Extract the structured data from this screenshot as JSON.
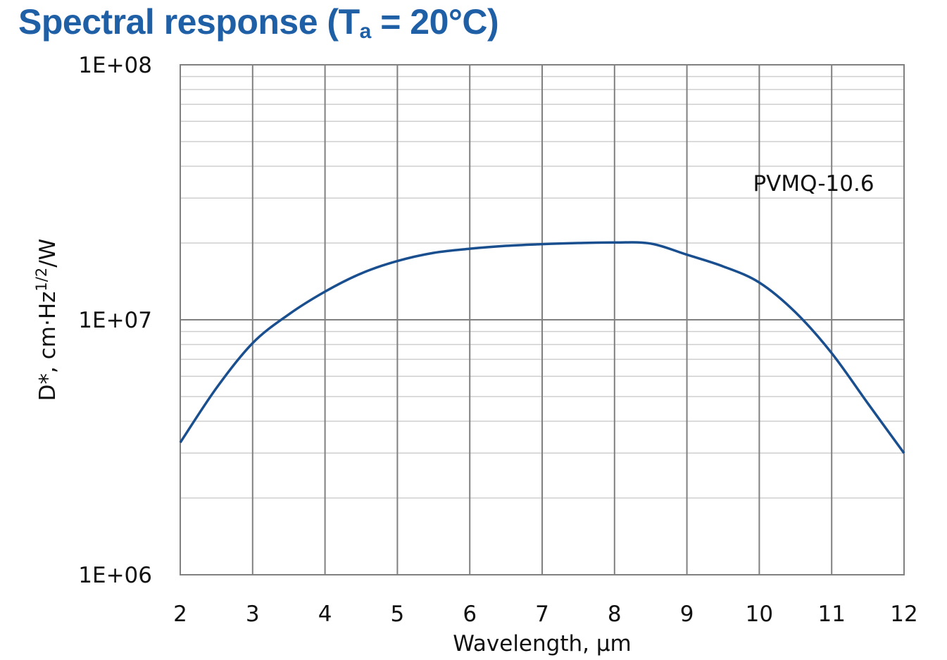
{
  "title": {
    "main": "Spectral response (T",
    "sub": "a",
    "rest": " = 20°C)"
  },
  "chart_data": {
    "type": "line",
    "title": "Spectral response (Ta = 20°C)",
    "xlabel": "Wavelength, µm",
    "ylabel": "D*, cm·Hz1/2/W",
    "ylabel_parts": {
      "pre": "D*, cm·Hz",
      "sup": "1/2",
      "post": "/W"
    },
    "xlim": [
      2,
      12
    ],
    "ylim": [
      1000000,
      100000000
    ],
    "yscale": "log",
    "x_ticks": [
      "2",
      "3",
      "4",
      "5",
      "6",
      "7",
      "8",
      "9",
      "10",
      "11",
      "12"
    ],
    "y_ticks": [
      {
        "value": 1000000,
        "label": "1E+06"
      },
      {
        "value": 10000000,
        "label": "1E+07"
      },
      {
        "value": 100000000,
        "label": "1E+08"
      }
    ],
    "grid": true,
    "series": [
      {
        "name": "PVMQ-10.6",
        "color": "#1a4f8f",
        "x": [
          2,
          2.5,
          3,
          3.5,
          4,
          4.5,
          5,
          5.5,
          6,
          6.5,
          7,
          7.5,
          8,
          8.5,
          9,
          9.5,
          10,
          10.5,
          11,
          11.5,
          12
        ],
        "y": [
          3300000,
          5400000,
          8100000,
          10500000,
          12900000,
          15200000,
          17000000,
          18300000,
          19000000,
          19500000,
          19800000,
          20000000,
          20100000,
          19900000,
          18000000,
          16200000,
          14000000,
          10700000,
          7400000,
          4700000,
          3000000
        ]
      }
    ]
  }
}
